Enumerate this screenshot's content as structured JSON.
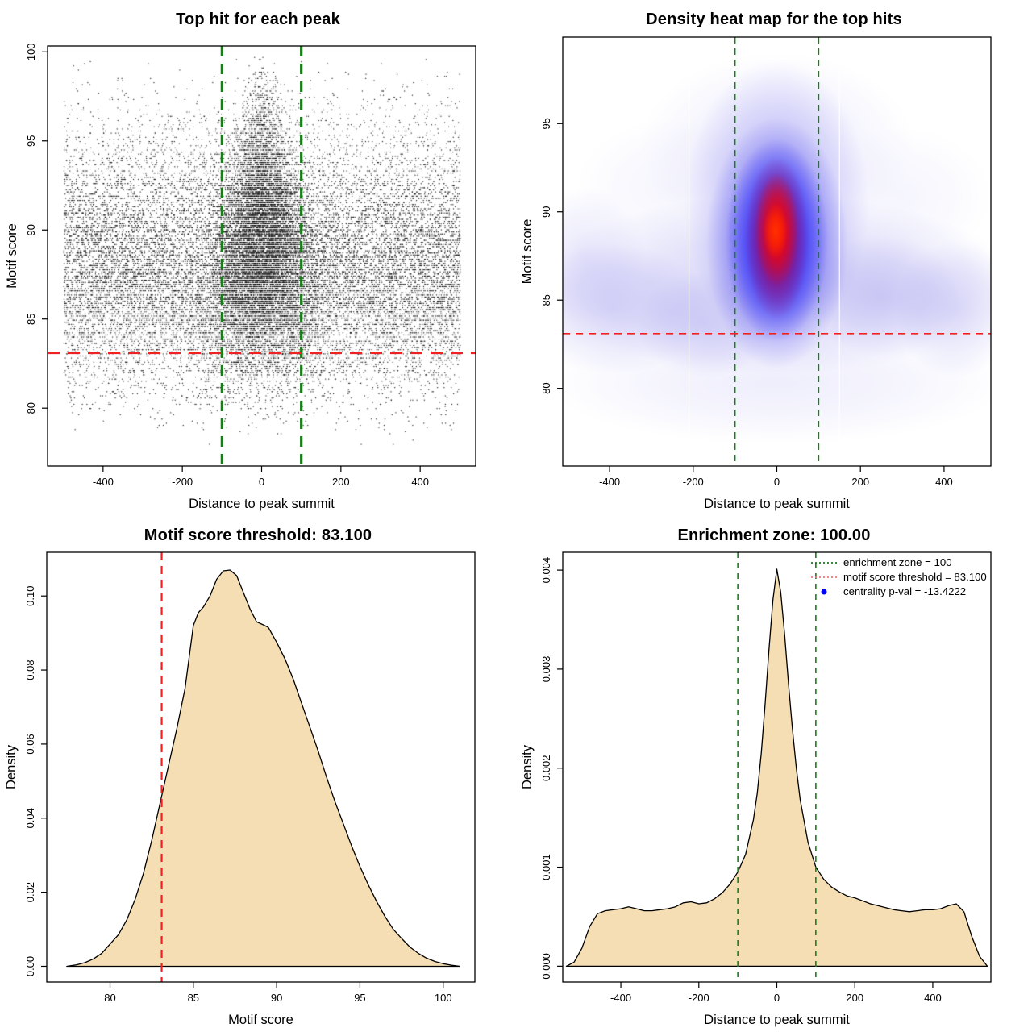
{
  "figure": {
    "background": "#ffffff",
    "colors": {
      "enrichment_green": "#1c7c1c",
      "threshold_red": "#ee2222",
      "legend_red": "#ee7777",
      "legend_blue": "#0000ff",
      "density_fill": "#f5deb3",
      "point_black": "#000000"
    }
  },
  "chart_data": [
    {
      "type": "scatter",
      "title": "Top hit for each peak",
      "xlabel": "Distance to peak summit",
      "ylabel": "Motif score",
      "xlim": [
        -540,
        540
      ],
      "ylim": [
        76.75,
        100.33
      ],
      "xticks": [
        [
          -400,
          "-400"
        ],
        [
          -200,
          "-200"
        ],
        [
          0,
          "0"
        ],
        [
          200,
          "200"
        ],
        [
          400,
          "400"
        ]
      ],
      "yticks": [
        [
          80,
          "80"
        ],
        [
          85,
          "85"
        ],
        [
          90,
          "90"
        ],
        [
          95,
          "95"
        ],
        [
          100,
          "100"
        ]
      ],
      "point_color": "#000000",
      "enrichment_zone": {
        "x": [
          -100,
          100
        ],
        "color": "#1c7c1c",
        "style": "dashed"
      },
      "score_threshold": {
        "y": 83.1,
        "color": "#ee2222",
        "style": "dashed"
      },
      "points_model": {
        "seed": 42,
        "n": 26000,
        "x_background": "uniform(-500,500)",
        "center_fraction_base": 0.36,
        "center_fraction_slope_per_score": 0.012,
        "center_sigma_at_80": 98,
        "center_sigma_slope": 4.2,
        "center_sigma_min": 14,
        "score_range": [
          77.8,
          99.7
        ],
        "score_quantum": 0.118,
        "score_distribution": "kernel density of chart 3"
      }
    },
    {
      "type": "heatmap",
      "title": "Density heat map for the top hits",
      "xlabel": "Distance to peak summit",
      "ylabel": "Motif score",
      "xlim": [
        -512,
        512
      ],
      "ylim": [
        75.6,
        99.9
      ],
      "xticks": [
        [
          -400,
          "-400"
        ],
        [
          -200,
          "-200"
        ],
        [
          0,
          "0"
        ],
        [
          200,
          "200"
        ],
        [
          400,
          "400"
        ]
      ],
      "yticks": [
        [
          80,
          "80"
        ],
        [
          85,
          "85"
        ],
        [
          90,
          "90"
        ],
        [
          95,
          "95"
        ]
      ],
      "colormap": [
        "#ffffff",
        "#8e88e9",
        "#1512fb",
        "#ff0000"
      ],
      "hotspot": {
        "x": 0,
        "y": 89.8
      },
      "enrichment_zone": {
        "x": [
          -100,
          100
        ],
        "color": "#1c7c1c",
        "style": "dashed"
      },
      "score_threshold": {
        "y": 83.1,
        "color": "#ee2222",
        "style": "dashed"
      },
      "white_streaks_x": [
        -210,
        150
      ],
      "blobs": [
        [
          0,
          85.9,
          570,
          5.1,
          "#8e88e9",
          0.4
        ],
        [
          -392,
          84.5,
          231,
          3.7,
          "#8e88e9",
          0.3
        ],
        [
          -460,
          87.5,
          145,
          3.9,
          "#9e98ee",
          0.22
        ],
        [
          -171,
          83.6,
          164,
          3.0,
          "#8e88e9",
          0.26
        ],
        [
          254,
          85.2,
          183,
          3.45,
          "#8e88e9",
          0.3
        ],
        [
          427,
          84.5,
          145,
          3.9,
          "#8e88e9",
          0.28
        ],
        [
          0,
          80.3,
          550,
          3.45,
          "#a29cf0",
          0.18
        ],
        [
          0,
          93.7,
          328,
          5.3,
          "#aaa5f1",
          0.22
        ],
        [
          -248,
          91.4,
          231,
          3.9,
          "#b6b1f3",
          0.13
        ],
        [
          292,
          90.9,
          222,
          3.9,
          "#b6b1f3",
          0.13
        ],
        [
          0,
          90.5,
          222,
          8.05,
          "#7a74ef",
          0.5
        ],
        [
          0,
          88.2,
          170,
          7.1,
          "#3a35f0",
          0.72
        ],
        [
          0,
          88.4,
          123,
          5.75,
          "#1512fb",
          0.88
        ],
        [
          0,
          88.5,
          77,
          4.6,
          "#c40037",
          0.9
        ],
        [
          0,
          89.0,
          52,
          3.2,
          "#fb0600",
          1.0
        ],
        [
          -3,
          88.9,
          29,
          1.56,
          "#ff3000",
          1.0
        ]
      ]
    },
    {
      "type": "area",
      "title": "Motif score threshold: 83.100",
      "xlabel": "Motif score",
      "ylabel": "Density",
      "xlim": [
        76.2,
        101.9
      ],
      "ylim": [
        -0.00425,
        0.1118
      ],
      "xticks": [
        [
          80,
          "80"
        ],
        [
          85,
          "85"
        ],
        [
          90,
          "90"
        ],
        [
          95,
          "95"
        ],
        [
          100,
          "100"
        ]
      ],
      "yticks": [
        [
          0,
          "0.00"
        ],
        [
          0.02,
          "0.02"
        ],
        [
          0.04,
          "0.04"
        ],
        [
          0.06,
          "0.06"
        ],
        [
          0.08,
          "0.08"
        ],
        [
          0.1,
          "0.10"
        ]
      ],
      "fill": "#f5deb3",
      "line_color": "#000000",
      "threshold_line": {
        "x": 83.1,
        "color": "#ee2222",
        "style": "dashed"
      },
      "x": [
        77.4,
        78,
        78.5,
        79,
        79.5,
        80,
        80.5,
        81,
        81.5,
        82,
        82.5,
        83,
        83.5,
        84,
        84.5,
        85,
        85.3,
        85.6,
        86,
        86.4,
        86.8,
        87.2,
        87.6,
        88,
        88.4,
        88.8,
        89.2,
        89.5,
        90,
        90.5,
        91,
        91.5,
        92,
        92.5,
        93,
        93.5,
        94,
        94.5,
        95,
        95.5,
        96,
        96.5,
        97,
        97.5,
        98,
        98.5,
        99,
        99.5,
        100,
        100.5,
        101
      ],
      "y": [
        0,
        0.0004,
        0.001,
        0.002,
        0.0035,
        0.006,
        0.0085,
        0.0125,
        0.018,
        0.025,
        0.034,
        0.044,
        0.054,
        0.064,
        0.075,
        0.092,
        0.0955,
        0.097,
        0.1,
        0.1045,
        0.1068,
        0.107,
        0.1055,
        0.101,
        0.0965,
        0.093,
        0.0922,
        0.0915,
        0.0875,
        0.083,
        0.0775,
        0.071,
        0.0645,
        0.058,
        0.051,
        0.0445,
        0.0385,
        0.0325,
        0.027,
        0.022,
        0.0175,
        0.0135,
        0.01,
        0.0075,
        0.0052,
        0.0035,
        0.0022,
        0.0013,
        0.0007,
        0.0003,
        0
      ]
    },
    {
      "type": "area",
      "title": "Enrichment zone: 100.00",
      "xlabel": "Distance to peak summit",
      "ylabel": "Density",
      "xlim": [
        -549,
        549
      ],
      "ylim": [
        -0.00016,
        0.00418
      ],
      "xticks": [
        [
          -400,
          "-400"
        ],
        [
          -200,
          "-200"
        ],
        [
          0,
          "0"
        ],
        [
          200,
          "200"
        ],
        [
          400,
          "400"
        ]
      ],
      "yticks": [
        [
          0,
          "0.000"
        ],
        [
          0.001,
          "0.001"
        ],
        [
          0.002,
          "0.002"
        ],
        [
          0.003,
          "0.003"
        ],
        [
          0.004,
          "0.004"
        ]
      ],
      "fill": "#f5deb3",
      "line_color": "#000000",
      "zone_lines": {
        "x": [
          -100,
          100
        ],
        "color": "#1c7c1c",
        "style": "dashed"
      },
      "x": [
        -540,
        -520,
        -500,
        -480,
        -460,
        -440,
        -420,
        -400,
        -380,
        -360,
        -340,
        -320,
        -300,
        -280,
        -260,
        -240,
        -220,
        -200,
        -180,
        -160,
        -140,
        -120,
        -100,
        -80,
        -60,
        -50,
        -40,
        -30,
        -20,
        -10,
        0,
        10,
        20,
        30,
        40,
        50,
        60,
        80,
        100,
        120,
        140,
        160,
        180,
        200,
        220,
        240,
        260,
        280,
        300,
        320,
        340,
        360,
        380,
        400,
        420,
        440,
        460,
        480,
        500,
        520,
        540
      ],
      "y": [
        0,
        4e-05,
        0.00018,
        0.0004,
        0.00053,
        0.00056,
        0.00057,
        0.00058,
        0.0006,
        0.00058,
        0.00056,
        0.00056,
        0.00057,
        0.00058,
        0.0006,
        0.00064,
        0.00065,
        0.00063,
        0.00064,
        0.00068,
        0.00074,
        0.00083,
        0.00095,
        0.00113,
        0.00148,
        0.00175,
        0.00215,
        0.00265,
        0.0032,
        0.0037,
        0.00401,
        0.00378,
        0.00335,
        0.00285,
        0.0024,
        0.002,
        0.00168,
        0.00125,
        0.001,
        0.00088,
        0.0008,
        0.00075,
        0.00071,
        0.00069,
        0.00066,
        0.00063,
        0.00061,
        0.00059,
        0.00057,
        0.00056,
        0.00055,
        0.00056,
        0.00057,
        0.00057,
        0.00058,
        0.00061,
        0.00063,
        0.00055,
        0.0003,
        0.0001,
        0
      ],
      "legend": {
        "items": [
          {
            "swatch": "dotted-line",
            "color": "#1c7c1c",
            "label": "enrichment zone = 100"
          },
          {
            "swatch": "dotted-line",
            "color": "#ee7777",
            "label": "motif score threshold = 83.100"
          },
          {
            "swatch": "dot",
            "color": "#0000ff",
            "label": "centrality p-val = -13.4222"
          }
        ]
      }
    }
  ]
}
